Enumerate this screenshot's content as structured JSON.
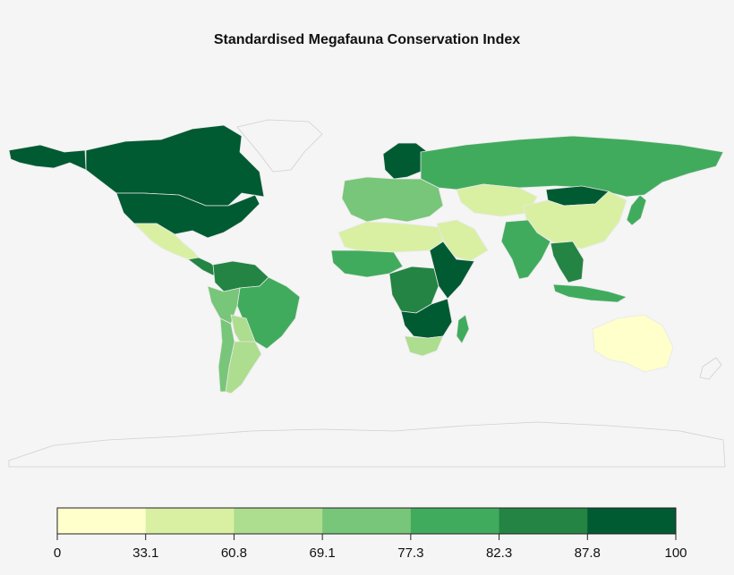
{
  "title": "Standardised Megafauna Conservation Index",
  "colors": {
    "background": "#f5f5f5",
    "no_data_fill": "#f5f5f5",
    "no_data_stroke": "#d0d0d0",
    "country_stroke": "#e8e8e8"
  },
  "legend": {
    "breaks": [
      "0",
      "33.1",
      "60.8",
      "69.1",
      "77.3",
      "82.3",
      "87.8",
      "100"
    ],
    "bin_colors": [
      "#ffffcc",
      "#d9f0a3",
      "#addd8e",
      "#78c679",
      "#41ab5d",
      "#238443",
      "#005a32"
    ]
  },
  "map_data": {
    "type": "choropleth",
    "variable": "Standardised Megafauna Conservation Index",
    "regions": [
      {
        "id": "canada",
        "bin": 6
      },
      {
        "id": "usa",
        "bin": 6
      },
      {
        "id": "alaska",
        "bin": 6
      },
      {
        "id": "greenland",
        "bin": -1
      },
      {
        "id": "mexico",
        "bin": 1
      },
      {
        "id": "central-america",
        "bin": 5
      },
      {
        "id": "colombia-venezuela",
        "bin": 5
      },
      {
        "id": "brazil",
        "bin": 4
      },
      {
        "id": "peru",
        "bin": 3
      },
      {
        "id": "bolivia",
        "bin": 2
      },
      {
        "id": "argentina",
        "bin": 2
      },
      {
        "id": "chile",
        "bin": 3
      },
      {
        "id": "scandinavia",
        "bin": 6
      },
      {
        "id": "europe",
        "bin": 3
      },
      {
        "id": "russia",
        "bin": 4
      },
      {
        "id": "kazakhstan",
        "bin": 1
      },
      {
        "id": "mongolia",
        "bin": 6
      },
      {
        "id": "china",
        "bin": 1
      },
      {
        "id": "india",
        "bin": 4
      },
      {
        "id": "southeast-asia",
        "bin": 5
      },
      {
        "id": "indonesia",
        "bin": 4
      },
      {
        "id": "japan",
        "bin": 4
      },
      {
        "id": "arabia",
        "bin": 1
      },
      {
        "id": "north-africa",
        "bin": 1
      },
      {
        "id": "west-africa",
        "bin": 4
      },
      {
        "id": "central-africa",
        "bin": 5
      },
      {
        "id": "east-africa",
        "bin": 6
      },
      {
        "id": "southern-africa",
        "bin": 6
      },
      {
        "id": "south-africa",
        "bin": 2
      },
      {
        "id": "madagascar",
        "bin": 4
      },
      {
        "id": "australia",
        "bin": 0
      },
      {
        "id": "new-zealand",
        "bin": -1
      },
      {
        "id": "antarctica",
        "bin": -1
      }
    ]
  }
}
